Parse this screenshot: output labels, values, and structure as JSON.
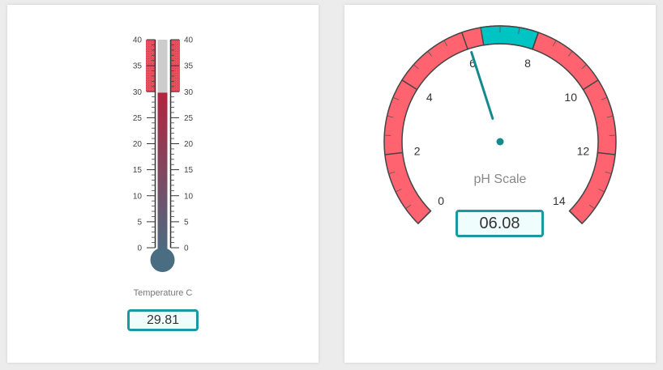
{
  "thermometer": {
    "title": "Temperature C",
    "value": 29.81,
    "value_label": "29.81",
    "min": 0,
    "max": 40,
    "major_ticks": [
      0,
      5,
      10,
      15,
      20,
      25,
      30,
      35,
      40
    ],
    "alert_from": 30,
    "colors": {
      "fill_top": "#b3243f",
      "fill_bottom": "#4a6d82",
      "alert": "#e85060",
      "empty": "#cccccc"
    }
  },
  "gauge": {
    "title": "pH Scale",
    "value": 6.08,
    "value_label": "06.08",
    "min": 0,
    "max": 14,
    "major_ticks": [
      0,
      2,
      4,
      6,
      8,
      10,
      12,
      14
    ],
    "normal_band": [
      6.5,
      8
    ],
    "colors": {
      "band": "#ff6370",
      "normal": "#00c3c3",
      "needle": "#138a8e"
    }
  }
}
